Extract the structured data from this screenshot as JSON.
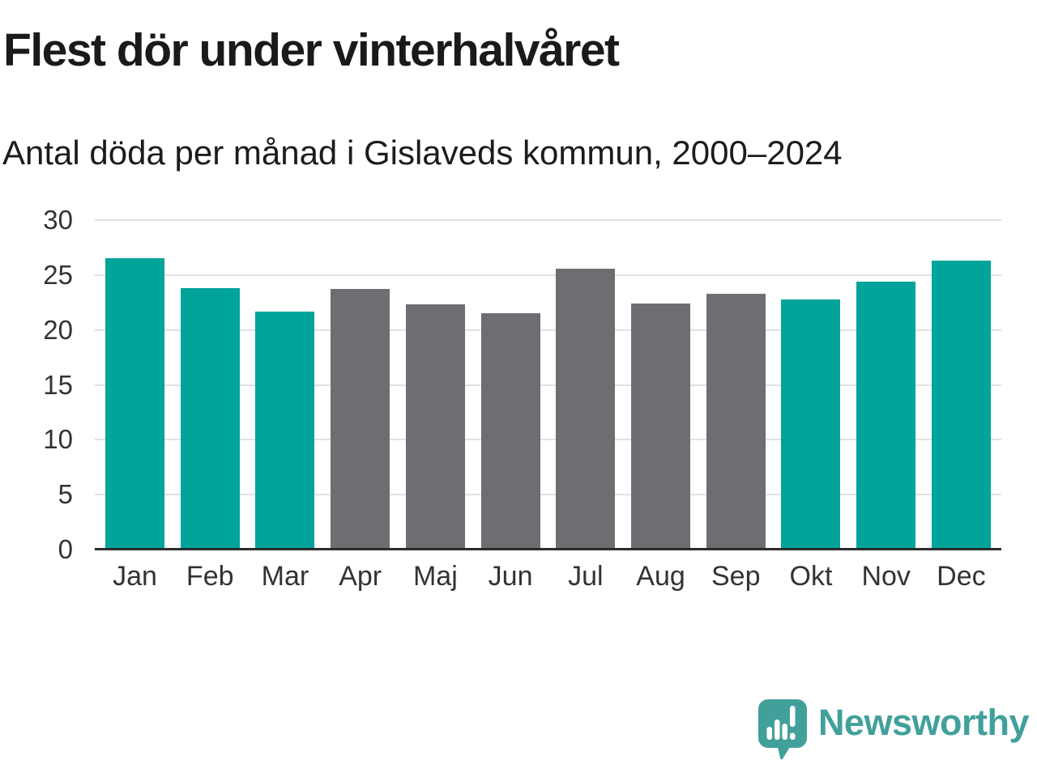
{
  "chart_data": {
    "type": "bar",
    "title": "Flest dör under vinterhalvåret",
    "subtitle": "Antal döda per månad i Gislaveds kommun, 2000–2024",
    "categories": [
      "Jan",
      "Feb",
      "Mar",
      "Apr",
      "Maj",
      "Jun",
      "Jul",
      "Aug",
      "Sep",
      "Okt",
      "Nov",
      "Dec"
    ],
    "values": [
      26.5,
      23.8,
      21.7,
      23.7,
      22.3,
      21.5,
      25.6,
      22.4,
      23.3,
      22.8,
      24.4,
      26.3
    ],
    "bar_colors": [
      "teal",
      "teal",
      "teal",
      "gray",
      "gray",
      "gray",
      "gray",
      "gray",
      "gray",
      "teal",
      "teal",
      "teal"
    ],
    "palette": {
      "teal": "#00a49a",
      "gray": "#6e6e72"
    },
    "xlabel": "",
    "ylabel": "",
    "ylim": [
      0,
      30
    ],
    "yticks": [
      0,
      5,
      10,
      15,
      20,
      25,
      30
    ],
    "grid": "horizontal",
    "legend": "none"
  },
  "colors": {
    "background": "#ffffff",
    "title_text": "#1a1a1a",
    "axis_text": "#333333",
    "gridline": "#e1e1e1",
    "axis_line": "#2b2b2b",
    "logo_teal": "#42a09b"
  },
  "branding": {
    "logo_text": "Newsworthy",
    "logo_icon": "speech-bubble-with-bar-chart-and-exclamation"
  }
}
